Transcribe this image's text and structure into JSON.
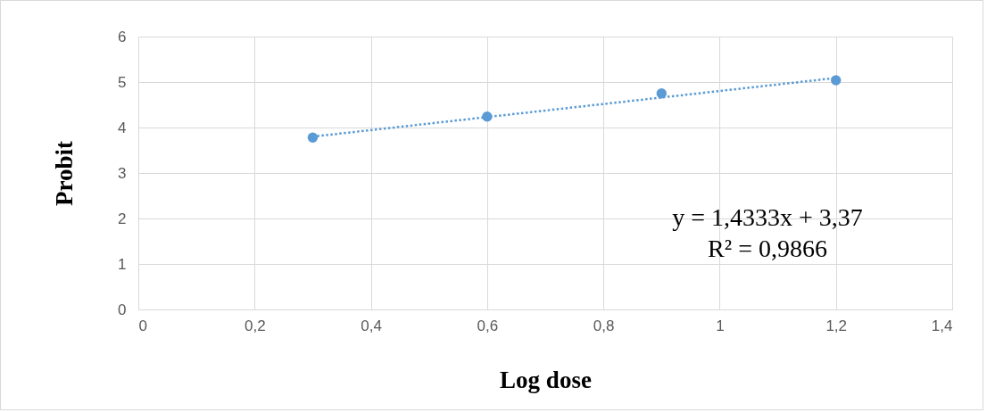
{
  "chart_data": {
    "type": "scatter",
    "xlabel": "Log dose",
    "ylabel": "Probit",
    "annotations": [
      "y = 1,4333x + 3,37",
      "R² = 0,9866"
    ],
    "xlim": [
      0,
      1.4
    ],
    "ylim": [
      0,
      6
    ],
    "xticks": [
      0,
      {
        "value": 0.2,
        "label": "0,2"
      },
      {
        "value": 0.4,
        "label": "0,4"
      },
      {
        "value": 0.6,
        "label": "0,6"
      },
      {
        "value": 0.8,
        "label": "0,8"
      },
      1,
      {
        "value": 1.2,
        "label": "1,2"
      },
      {
        "value": 1.4,
        "label": "1,4"
      }
    ],
    "yticks": [
      0,
      1,
      2,
      3,
      4,
      5,
      6
    ],
    "grid": true,
    "series": [
      {
        "color": "#5b9bd5",
        "marker": "circle",
        "x": [
          0.3,
          0.6,
          0.9,
          1.2
        ],
        "values": [
          3.78,
          4.24,
          4.75,
          5.04
        ]
      },
      {
        "type": "line",
        "color": "#5b9bd5",
        "line_style": "dotted",
        "marker": "none",
        "x": [
          0.3,
          1.2
        ],
        "values": [
          3.8,
          5.09
        ]
      }
    ]
  }
}
